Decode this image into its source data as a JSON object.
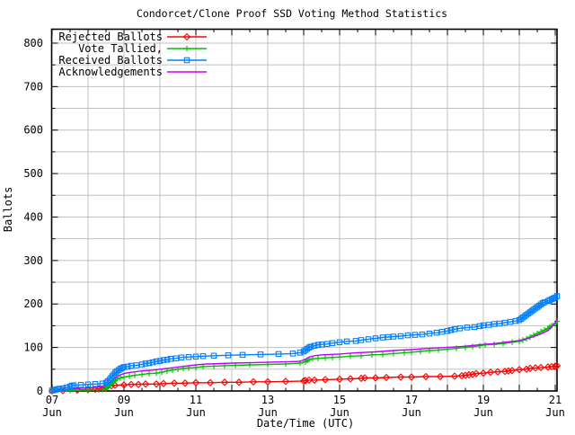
{
  "title": "Condorcet/Clone Proof SSD Voting Method Statistics",
  "x_axis": {
    "label": "Date/Time (UTC)",
    "month": "Jun",
    "ticks": [
      {
        "day": 7,
        "label": "07"
      },
      {
        "day": 9,
        "label": "09"
      },
      {
        "day": 11,
        "label": "11"
      },
      {
        "day": 13,
        "label": "13"
      },
      {
        "day": 15,
        "label": "15"
      },
      {
        "day": 17,
        "label": "17"
      },
      {
        "day": 19,
        "label": "19"
      },
      {
        "day": 21,
        "label": "21"
      }
    ]
  },
  "y_axis": {
    "label": "Ballots",
    "ticks": [
      "0",
      "100",
      "200",
      "300",
      "400",
      "500",
      "600",
      "700",
      "800"
    ]
  },
  "colors": {
    "grid": "#c0c0c0",
    "frame": "#000000",
    "background": "#ffffff"
  },
  "chart_data": {
    "type": "line",
    "title": "Condorcet/Clone Proof SSD Voting Method Statistics",
    "xlabel": "Date/Time (UTC)",
    "ylabel": "Ballots",
    "x_unit": "day of June (UTC)",
    "xlim": [
      7,
      21.05
    ],
    "ylim": [
      0,
      832
    ],
    "grid": "on",
    "legend_position": "top-left",
    "y_major_step": 100,
    "y_grid_step": 50,
    "x_grid_step_days": 1,
    "series": [
      {
        "name": "Rejected Ballots",
        "color": "#ff0000",
        "marker": "diamond",
        "points": [
          [
            7.0,
            0
          ],
          [
            7.3,
            1
          ],
          [
            7.7,
            2
          ],
          [
            8.0,
            3
          ],
          [
            8.2,
            4
          ],
          [
            8.3,
            5
          ],
          [
            8.45,
            7
          ],
          [
            8.5,
            9
          ],
          [
            8.55,
            11
          ],
          [
            8.65,
            12
          ],
          [
            8.75,
            13
          ],
          [
            9.0,
            14
          ],
          [
            9.2,
            15
          ],
          [
            9.4,
            15
          ],
          [
            9.6,
            16
          ],
          [
            9.9,
            16
          ],
          [
            10.1,
            17
          ],
          [
            10.4,
            18
          ],
          [
            10.7,
            18
          ],
          [
            11.0,
            19
          ],
          [
            11.4,
            19
          ],
          [
            11.8,
            20
          ],
          [
            12.2,
            20
          ],
          [
            12.6,
            21
          ],
          [
            13.0,
            21
          ],
          [
            13.5,
            22
          ],
          [
            14.0,
            23
          ],
          [
            14.05,
            24
          ],
          [
            14.15,
            25
          ],
          [
            14.3,
            25
          ],
          [
            14.6,
            26
          ],
          [
            15.0,
            27
          ],
          [
            15.3,
            28
          ],
          [
            15.6,
            29
          ],
          [
            15.7,
            30
          ],
          [
            16.0,
            30
          ],
          [
            16.3,
            31
          ],
          [
            16.7,
            32
          ],
          [
            17.0,
            32
          ],
          [
            17.4,
            33
          ],
          [
            17.8,
            33
          ],
          [
            18.2,
            34
          ],
          [
            18.4,
            35
          ],
          [
            18.5,
            36
          ],
          [
            18.6,
            37
          ],
          [
            18.7,
            38
          ],
          [
            18.8,
            40
          ],
          [
            19.0,
            41
          ],
          [
            19.2,
            43
          ],
          [
            19.4,
            44
          ],
          [
            19.6,
            45
          ],
          [
            19.7,
            46
          ],
          [
            19.8,
            47
          ],
          [
            20.0,
            49
          ],
          [
            20.2,
            50
          ],
          [
            20.3,
            52
          ],
          [
            20.45,
            53
          ],
          [
            20.6,
            54
          ],
          [
            20.8,
            55
          ],
          [
            20.9,
            56
          ],
          [
            21.0,
            57
          ],
          [
            21.05,
            58
          ]
        ]
      },
      {
        "name": "Vote Tallied,",
        "color": "#00c000",
        "marker": "plus",
        "points": [
          [
            7.0,
            0
          ],
          [
            7.5,
            1
          ],
          [
            8.0,
            2
          ],
          [
            8.4,
            3
          ],
          [
            8.5,
            5
          ],
          [
            8.55,
            9
          ],
          [
            8.6,
            13
          ],
          [
            8.65,
            17
          ],
          [
            8.7,
            21
          ],
          [
            8.75,
            24
          ],
          [
            8.8,
            27
          ],
          [
            8.9,
            30
          ],
          [
            9.0,
            32
          ],
          [
            9.15,
            34
          ],
          [
            9.3,
            36
          ],
          [
            9.5,
            38
          ],
          [
            9.7,
            40
          ],
          [
            9.9,
            41
          ],
          [
            10.05,
            43
          ],
          [
            10.2,
            46
          ],
          [
            10.35,
            48
          ],
          [
            10.5,
            50
          ],
          [
            10.65,
            52
          ],
          [
            10.8,
            53
          ],
          [
            11.0,
            54
          ],
          [
            11.2,
            56
          ],
          [
            11.5,
            57
          ],
          [
            11.8,
            58
          ],
          [
            12.1,
            59
          ],
          [
            12.5,
            60
          ],
          [
            13.0,
            61
          ],
          [
            13.5,
            62
          ],
          [
            13.9,
            64
          ],
          [
            14.05,
            67
          ],
          [
            14.1,
            70
          ],
          [
            14.15,
            72
          ],
          [
            14.25,
            74
          ],
          [
            14.4,
            75
          ],
          [
            14.6,
            76
          ],
          [
            14.8,
            77
          ],
          [
            15.0,
            78
          ],
          [
            15.3,
            80
          ],
          [
            15.6,
            81
          ],
          [
            15.9,
            83
          ],
          [
            16.2,
            84
          ],
          [
            16.5,
            86
          ],
          [
            16.8,
            88
          ],
          [
            17.0,
            89
          ],
          [
            17.25,
            91
          ],
          [
            17.5,
            93
          ],
          [
            17.75,
            94
          ],
          [
            18.0,
            96
          ],
          [
            18.25,
            98
          ],
          [
            18.5,
            100
          ],
          [
            18.7,
            102
          ],
          [
            18.9,
            104
          ],
          [
            19.05,
            106
          ],
          [
            19.3,
            107
          ],
          [
            19.55,
            109
          ],
          [
            19.8,
            112
          ],
          [
            20.0,
            114
          ],
          [
            20.1,
            117
          ],
          [
            20.2,
            120
          ],
          [
            20.3,
            124
          ],
          [
            20.4,
            128
          ],
          [
            20.5,
            132
          ],
          [
            20.6,
            136
          ],
          [
            20.7,
            140
          ],
          [
            20.8,
            144
          ],
          [
            20.85,
            147
          ],
          [
            20.9,
            150
          ],
          [
            21.0,
            155
          ],
          [
            21.05,
            160
          ]
        ]
      },
      {
        "name": "Received Ballots",
        "color": "#0080ff",
        "marker": "square",
        "points": [
          [
            7.0,
            1
          ],
          [
            7.05,
            2
          ],
          [
            7.1,
            3
          ],
          [
            7.15,
            4
          ],
          [
            7.2,
            5
          ],
          [
            7.3,
            6
          ],
          [
            7.4,
            8
          ],
          [
            7.5,
            10
          ],
          [
            7.55,
            12
          ],
          [
            7.6,
            13
          ],
          [
            7.8,
            14
          ],
          [
            8.0,
            15
          ],
          [
            8.2,
            16
          ],
          [
            8.4,
            17
          ],
          [
            8.5,
            19
          ],
          [
            8.55,
            22
          ],
          [
            8.6,
            26
          ],
          [
            8.64,
            30
          ],
          [
            8.68,
            34
          ],
          [
            8.72,
            38
          ],
          [
            8.76,
            42
          ],
          [
            8.8,
            45
          ],
          [
            8.85,
            48
          ],
          [
            8.9,
            51
          ],
          [
            8.95,
            53
          ],
          [
            9.0,
            55
          ],
          [
            9.1,
            56
          ],
          [
            9.2,
            58
          ],
          [
            9.35,
            59
          ],
          [
            9.5,
            61
          ],
          [
            9.6,
            63
          ],
          [
            9.7,
            64
          ],
          [
            9.8,
            66
          ],
          [
            9.9,
            68
          ],
          [
            10.0,
            69
          ],
          [
            10.1,
            71
          ],
          [
            10.2,
            72
          ],
          [
            10.3,
            74
          ],
          [
            10.45,
            75
          ],
          [
            10.6,
            77
          ],
          [
            10.8,
            78
          ],
          [
            11.0,
            79
          ],
          [
            11.2,
            80
          ],
          [
            11.5,
            81
          ],
          [
            11.9,
            82
          ],
          [
            12.3,
            83
          ],
          [
            12.8,
            84
          ],
          [
            13.3,
            85
          ],
          [
            13.7,
            86
          ],
          [
            13.9,
            88
          ],
          [
            14.0,
            91
          ],
          [
            14.05,
            94
          ],
          [
            14.1,
            97
          ],
          [
            14.15,
            100
          ],
          [
            14.2,
            102
          ],
          [
            14.3,
            104
          ],
          [
            14.4,
            106
          ],
          [
            14.5,
            107
          ],
          [
            14.65,
            108
          ],
          [
            14.8,
            110
          ],
          [
            15.0,
            112
          ],
          [
            15.2,
            114
          ],
          [
            15.45,
            115
          ],
          [
            15.6,
            117
          ],
          [
            15.8,
            119
          ],
          [
            16.0,
            121
          ],
          [
            16.2,
            123
          ],
          [
            16.35,
            124
          ],
          [
            16.5,
            125
          ],
          [
            16.7,
            126
          ],
          [
            16.9,
            128
          ],
          [
            17.1,
            129
          ],
          [
            17.3,
            130
          ],
          [
            17.5,
            132
          ],
          [
            17.7,
            134
          ],
          [
            17.85,
            136
          ],
          [
            18.0,
            138
          ],
          [
            18.1,
            140
          ],
          [
            18.2,
            142
          ],
          [
            18.35,
            144
          ],
          [
            18.55,
            146
          ],
          [
            18.75,
            147
          ],
          [
            18.9,
            149
          ],
          [
            19.0,
            151
          ],
          [
            19.15,
            152
          ],
          [
            19.3,
            154
          ],
          [
            19.45,
            155
          ],
          [
            19.6,
            157
          ],
          [
            19.75,
            159
          ],
          [
            19.9,
            161
          ],
          [
            20.0,
            163
          ],
          [
            20.05,
            166
          ],
          [
            20.1,
            169
          ],
          [
            20.15,
            172
          ],
          [
            20.2,
            175
          ],
          [
            20.25,
            178
          ],
          [
            20.3,
            181
          ],
          [
            20.35,
            184
          ],
          [
            20.4,
            187
          ],
          [
            20.45,
            190
          ],
          [
            20.5,
            193
          ],
          [
            20.55,
            196
          ],
          [
            20.6,
            199
          ],
          [
            20.65,
            202
          ],
          [
            20.7,
            204
          ],
          [
            20.8,
            207
          ],
          [
            20.85,
            209
          ],
          [
            20.9,
            211
          ],
          [
            20.95,
            213
          ],
          [
            21.0,
            215
          ],
          [
            21.05,
            218
          ]
        ]
      },
      {
        "name": "Acknowledgements",
        "color": "#c000ff",
        "marker": "none",
        "points": [
          [
            7.0,
            1
          ],
          [
            7.3,
            3
          ],
          [
            7.6,
            5
          ],
          [
            8.0,
            7
          ],
          [
            8.4,
            9
          ],
          [
            8.5,
            13
          ],
          [
            8.6,
            19
          ],
          [
            8.7,
            26
          ],
          [
            8.8,
            32
          ],
          [
            8.9,
            37
          ],
          [
            9.0,
            40
          ],
          [
            9.2,
            43
          ],
          [
            9.5,
            46
          ],
          [
            9.8,
            48
          ],
          [
            10.0,
            50
          ],
          [
            10.3,
            53
          ],
          [
            10.6,
            56
          ],
          [
            11.0,
            60
          ],
          [
            11.3,
            62
          ],
          [
            11.7,
            63
          ],
          [
            12.0,
            64
          ],
          [
            12.5,
            65
          ],
          [
            13.0,
            66
          ],
          [
            13.5,
            67
          ],
          [
            13.9,
            68
          ],
          [
            14.05,
            73
          ],
          [
            14.15,
            78
          ],
          [
            14.3,
            81
          ],
          [
            14.5,
            83
          ],
          [
            15.0,
            85
          ],
          [
            15.5,
            88
          ],
          [
            16.0,
            90
          ],
          [
            16.5,
            93
          ],
          [
            17.0,
            95
          ],
          [
            17.5,
            98
          ],
          [
            18.0,
            100
          ],
          [
            18.5,
            103
          ],
          [
            19.0,
            107
          ],
          [
            19.3,
            109
          ],
          [
            19.6,
            112
          ],
          [
            20.0,
            116
          ],
          [
            20.2,
            120
          ],
          [
            20.4,
            125
          ],
          [
            20.6,
            131
          ],
          [
            20.8,
            139
          ],
          [
            20.9,
            147
          ],
          [
            21.0,
            157
          ],
          [
            21.05,
            165
          ]
        ]
      }
    ]
  }
}
